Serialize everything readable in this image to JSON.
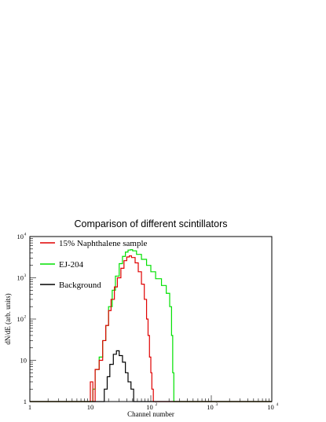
{
  "chart_data": {
    "type": "line",
    "title": "Comparison of different scintillators",
    "xlabel": "Channel number",
    "ylabel": "dN/dE (arb. units)",
    "xscale": "log",
    "yscale": "log",
    "xlim": [
      1,
      10000
    ],
    "ylim": [
      1,
      10000
    ],
    "x_ticks": [
      {
        "base": "1",
        "exp": ""
      },
      {
        "base": "10",
        "exp": ""
      },
      {
        "base": "10",
        "exp": "2"
      },
      {
        "base": "10",
        "exp": "3"
      },
      {
        "base": "10",
        "exp": "4"
      }
    ],
    "y_ticks": [
      {
        "base": "1",
        "exp": ""
      },
      {
        "base": "10",
        "exp": ""
      },
      {
        "base": "10",
        "exp": "2"
      },
      {
        "base": "10",
        "exp": "3"
      },
      {
        "base": "10",
        "exp": "4"
      }
    ],
    "legend_position": "top-left",
    "series": [
      {
        "name": "15% Naphthalene sample",
        "color": "#e00000",
        "points": [
          [
            9,
            1
          ],
          [
            10,
            3
          ],
          [
            11,
            1
          ],
          [
            12,
            6
          ],
          [
            14,
            10
          ],
          [
            16,
            30
          ],
          [
            18,
            70
          ],
          [
            20,
            160
          ],
          [
            22,
            300
          ],
          [
            25,
            600
          ],
          [
            28,
            1000
          ],
          [
            32,
            1700
          ],
          [
            36,
            2600
          ],
          [
            40,
            3200
          ],
          [
            44,
            3400
          ],
          [
            48,
            3100
          ],
          [
            55,
            2300
          ],
          [
            62,
            1400
          ],
          [
            70,
            700
          ],
          [
            78,
            300
          ],
          [
            85,
            100
          ],
          [
            90,
            40
          ],
          [
            95,
            12
          ],
          [
            100,
            5
          ],
          [
            104,
            2
          ],
          [
            110,
            1
          ]
        ]
      },
      {
        "name": "EJ-204",
        "color": "#00e000",
        "points": [
          [
            10,
            1
          ],
          [
            11,
            2
          ],
          [
            12,
            6
          ],
          [
            14,
            12
          ],
          [
            16,
            30
          ],
          [
            18,
            70
          ],
          [
            20,
            200
          ],
          [
            23,
            500
          ],
          [
            26,
            1100
          ],
          [
            30,
            2200
          ],
          [
            34,
            3300
          ],
          [
            38,
            4200
          ],
          [
            42,
            4700
          ],
          [
            46,
            4800
          ],
          [
            50,
            4500
          ],
          [
            58,
            3700
          ],
          [
            70,
            2800
          ],
          [
            85,
            2000
          ],
          [
            100,
            1400
          ],
          [
            120,
            950
          ],
          [
            150,
            650
          ],
          [
            180,
            420
          ],
          [
            205,
            200
          ],
          [
            220,
            40
          ],
          [
            230,
            5
          ],
          [
            240,
            1
          ]
        ]
      },
      {
        "name": "Background",
        "color": "#000000",
        "points": [
          [
            15,
            1
          ],
          [
            17,
            2
          ],
          [
            19,
            4
          ],
          [
            21,
            8
          ],
          [
            24,
            14
          ],
          [
            27,
            17
          ],
          [
            30,
            13
          ],
          [
            34,
            9
          ],
          [
            38,
            5
          ],
          [
            42,
            3
          ],
          [
            47,
            2
          ],
          [
            52,
            1
          ]
        ]
      }
    ]
  }
}
